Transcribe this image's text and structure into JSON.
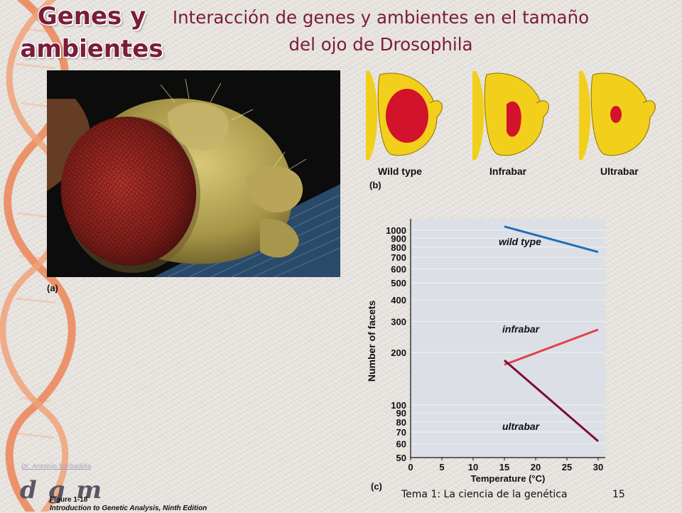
{
  "slide": {
    "section_title": "Genes y ambientes",
    "title": "Interacción de genes y ambientes en el tamaño del ojo de Drosophila",
    "footer_title": "Tema 1: La ciencia de la genética",
    "slide_number": "15",
    "credit": "Dr. Antonio Barbadilla",
    "logo": "dgm",
    "figure_caption": "Figure 1-18",
    "figure_source": "Introduction to Genetic Analysis, Ninth Edition"
  },
  "panels": {
    "a_label": "(a)",
    "b_label": "(b)",
    "c_label": "(c)",
    "eye_types": [
      "Wild type",
      "Infrabar",
      "Ultrabar"
    ]
  },
  "colors": {
    "title": "#7a1c3a",
    "wild_type": "#1f6fb8",
    "infrabar": "#e0404a",
    "ultrabar": "#7a0d3a",
    "head_yellow": "#f2cf1a",
    "eye_red": "#d3122b"
  },
  "chart_data": {
    "type": "line",
    "xlabel": "Temperature (°C)",
    "ylabel": "Number of facets",
    "x_ticks": [
      0,
      5,
      10,
      15,
      20,
      25,
      30
    ],
    "y_ticks": [
      50,
      60,
      70,
      80,
      90,
      100,
      200,
      300,
      400,
      500,
      600,
      700,
      800,
      900,
      1000
    ],
    "y_scale": "log",
    "xlim": [
      0,
      30
    ],
    "ylim": [
      50,
      1000
    ],
    "series": [
      {
        "name": "wild type",
        "x": [
          15,
          30
        ],
        "values": [
          1050,
          750
        ]
      },
      {
        "name": "infrabar",
        "x": [
          15,
          30
        ],
        "values": [
          170,
          270
        ]
      },
      {
        "name": "ultrabar",
        "x": [
          15,
          30
        ],
        "values": [
          180,
          62
        ]
      }
    ]
  }
}
